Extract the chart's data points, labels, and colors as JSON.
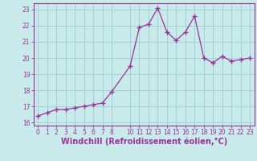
{
  "x": [
    0,
    1,
    2,
    3,
    4,
    5,
    6,
    7,
    8,
    10,
    11,
    12,
    13,
    14,
    15,
    16,
    17,
    18,
    19,
    20,
    21,
    22,
    23
  ],
  "y": [
    16.4,
    16.6,
    16.8,
    16.8,
    16.9,
    17.0,
    17.1,
    17.2,
    17.9,
    19.5,
    21.9,
    22.1,
    23.1,
    21.6,
    21.1,
    21.6,
    22.6,
    20.0,
    19.7,
    20.1,
    19.8,
    19.9,
    20.0
  ],
  "line_color": "#993399",
  "marker": "+",
  "marker_size": 4,
  "marker_lw": 1.0,
  "line_width": 0.9,
  "bg_color": "#c8eaea",
  "grid_color": "#9dcece",
  "xlabel": "Windchill (Refroidissement éolien,°C)",
  "xlim": [
    -0.5,
    23.5
  ],
  "ylim": [
    15.8,
    23.4
  ],
  "yticks": [
    16,
    17,
    18,
    19,
    20,
    21,
    22,
    23
  ],
  "xtick_positions": [
    0,
    1,
    2,
    3,
    4,
    5,
    6,
    7,
    8,
    10,
    11,
    12,
    13,
    14,
    15,
    16,
    17,
    18,
    19,
    20,
    21,
    22,
    23
  ],
  "xtick_labels": [
    "0",
    "1",
    "2",
    "3",
    "4",
    "5",
    "6",
    "7",
    "8",
    "10",
    "11",
    "12",
    "13",
    "14",
    "15",
    "16",
    "17",
    "18",
    "19",
    "20",
    "21",
    "22",
    "23"
  ],
  "xlabel_color": "#993399",
  "tick_color": "#993399",
  "spine_color": "#993399",
  "tick_fontsize": 5.5,
  "ylabel_fontsize": 7,
  "xlabel_fontsize": 7
}
